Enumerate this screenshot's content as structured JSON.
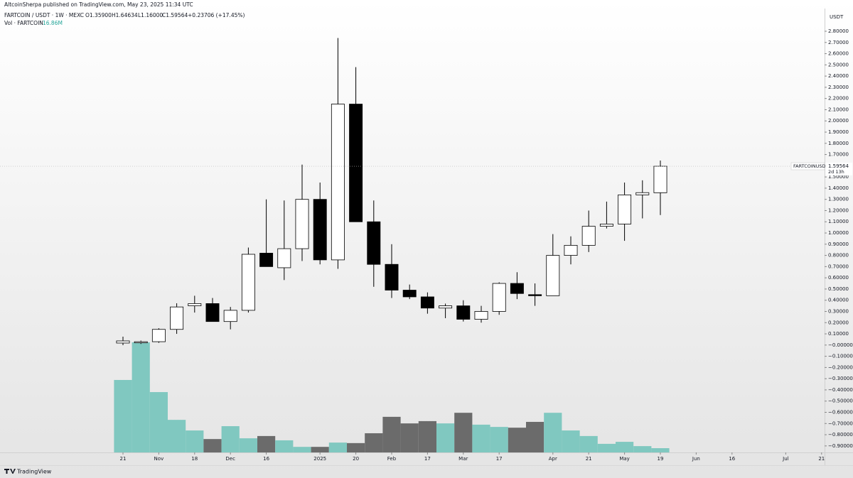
{
  "publisher": "AltcoinSherpa published on TradingView.com, May 23, 2025 11:34 UTC",
  "footer": "TradingView",
  "chart_data": {
    "type": "candlestick",
    "legend": {
      "symbol": "FARTCOIN / USDT · 1W · MEXC",
      "open": "O1.35900",
      "high": "H1.64634",
      "low": "L1.16000",
      "close": "C1.59564",
      "change": "+0.23706 (+17.45%)"
    },
    "axis_unit": "USDT",
    "price_tag": "FARTCOINUSDT",
    "countdown": "2d 13h",
    "x": [
      0,
      1,
      2,
      3,
      4,
      5,
      6,
      7,
      8,
      9,
      10,
      11,
      12,
      13,
      14,
      15,
      16,
      17,
      18,
      19,
      20,
      21,
      22,
      23,
      24,
      25,
      26,
      27,
      28,
      29,
      30
    ],
    "open": [
      0.018,
      0.02,
      0.03,
      0.14,
      0.35,
      0.37,
      0.21,
      0.31,
      0.82,
      0.69,
      0.86,
      1.3,
      0.76,
      2.15,
      1.1,
      0.72,
      0.49,
      0.43,
      0.33,
      0.35,
      0.23,
      0.3,
      0.55,
      0.45,
      0.44,
      0.8,
      0.89,
      1.06,
      1.08,
      1.34,
      1.359
    ],
    "high": [
      0.075,
      0.04,
      0.15,
      0.373,
      0.44,
      0.42,
      0.34,
      0.87,
      1.3,
      1.29,
      1.61,
      1.45,
      2.74,
      2.48,
      1.29,
      0.9,
      0.54,
      0.47,
      0.37,
      0.4,
      0.35,
      0.56,
      0.65,
      0.55,
      0.99,
      0.97,
      1.2,
      1.28,
      1.45,
      1.47,
      1.64634
    ],
    "low": [
      -0.001,
      0.01,
      0.02,
      0.1,
      0.29,
      0.21,
      0.14,
      0.29,
      0.7,
      0.58,
      0.75,
      0.72,
      0.68,
      1.1,
      0.52,
      0.42,
      0.41,
      0.28,
      0.24,
      0.21,
      0.2,
      0.27,
      0.41,
      0.35,
      0.44,
      0.72,
      0.83,
      1.04,
      0.93,
      1.13,
      1.16
    ],
    "close": [
      0.037,
      0.03,
      0.14,
      0.34,
      0.37,
      0.21,
      0.31,
      0.81,
      0.7,
      0.86,
      1.3,
      0.76,
      2.15,
      1.1,
      0.72,
      0.49,
      0.43,
      0.33,
      0.35,
      0.23,
      0.3,
      0.55,
      0.46,
      0.44,
      0.8,
      0.89,
      1.06,
      1.08,
      1.34,
      1.36,
      1.59564
    ],
    "up_color": "#ffffff",
    "down_color": "#000000",
    "wick_color": "#000000",
    "volume": {
      "name": "Vol · FARTCOIN",
      "legend_value": "16.86M",
      "values": [
        287,
        436,
        239,
        129,
        87,
        53,
        104,
        56,
        65,
        48,
        22,
        22,
        39,
        37,
        76,
        141,
        115,
        124,
        115,
        157,
        110,
        101,
        98,
        121,
        157,
        87,
        65,
        34,
        42,
        25,
        16.86
      ],
      "up_color": "#80c8c0",
      "down_color": "#6b6b6b"
    },
    "xlim": [
      -6.865,
      39.167
    ],
    "xticks": [
      {
        "value": 0,
        "label": "21"
      },
      {
        "value": 2,
        "label": "Nov"
      },
      {
        "value": 4,
        "label": "18"
      },
      {
        "value": 6,
        "label": "Dec"
      },
      {
        "value": 8,
        "label": "16"
      },
      {
        "value": 11,
        "label": "2025"
      },
      {
        "value": 13,
        "label": "20"
      },
      {
        "value": 15,
        "label": "Feb"
      },
      {
        "value": 17,
        "label": "17"
      },
      {
        "value": 19,
        "label": "Mar"
      },
      {
        "value": 21,
        "label": "17"
      },
      {
        "value": 24,
        "label": "Apr"
      },
      {
        "value": 26,
        "label": "21"
      },
      {
        "value": 28,
        "label": "May"
      },
      {
        "value": 30,
        "label": "19"
      },
      {
        "value": 32,
        "label": "Jun"
      },
      {
        "value": 34,
        "label": "16"
      },
      {
        "value": 37,
        "label": "Jul"
      },
      {
        "value": 39,
        "label": "21"
      }
    ],
    "ylim": [
      -0.958,
      2.952
    ],
    "yticks": [
      {
        "value": 2.8,
        "label": "2.80000"
      },
      {
        "value": 2.7,
        "label": "2.70000"
      },
      {
        "value": 2.6,
        "label": "2.60000"
      },
      {
        "value": 2.5,
        "label": "2.50000"
      },
      {
        "value": 2.4,
        "label": "2.40000"
      },
      {
        "value": 2.3,
        "label": "2.30000"
      },
      {
        "value": 2.2,
        "label": "2.20000"
      },
      {
        "value": 2.1,
        "label": "2.10000"
      },
      {
        "value": 2.0,
        "label": "2.00000"
      },
      {
        "value": 1.9,
        "label": "1.90000"
      },
      {
        "value": 1.8,
        "label": "1.80000"
      },
      {
        "value": 1.7,
        "label": "1.70000"
      },
      {
        "value": 1.5,
        "label": "1.50000"
      },
      {
        "value": 1.4,
        "label": "1.40000"
      },
      {
        "value": 1.3,
        "label": "1.30000"
      },
      {
        "value": 1.2,
        "label": "1.20000"
      },
      {
        "value": 1.1,
        "label": "1.10000"
      },
      {
        "value": 1.0,
        "label": "1.00000"
      },
      {
        "value": 0.9,
        "label": "0.90000"
      },
      {
        "value": 0.8,
        "label": "0.80000"
      },
      {
        "value": 0.7,
        "label": "0.70000"
      },
      {
        "value": 0.6,
        "label": "0.60000"
      },
      {
        "value": 0.5,
        "label": "0.50000"
      },
      {
        "value": 0.4,
        "label": "0.40000"
      },
      {
        "value": 0.3,
        "label": "0.30000"
      },
      {
        "value": 0.2,
        "label": "0.20000"
      },
      {
        "value": 0.1,
        "label": "0.10000"
      },
      {
        "value": 0,
        "label": "−0.00000"
      },
      {
        "value": -0.1,
        "label": "−0.10000"
      },
      {
        "value": -0.2,
        "label": "−0.20000"
      },
      {
        "value": -0.3,
        "label": "−0.30000"
      },
      {
        "value": -0.4,
        "label": "−0.40000"
      },
      {
        "value": -0.5,
        "label": "−0.50000"
      },
      {
        "value": -0.6,
        "label": "−0.60000"
      },
      {
        "value": -0.7,
        "label": "−0.70000"
      },
      {
        "value": -0.8,
        "label": "−0.80000"
      },
      {
        "value": -0.9,
        "label": "−0.90000"
      }
    ]
  }
}
